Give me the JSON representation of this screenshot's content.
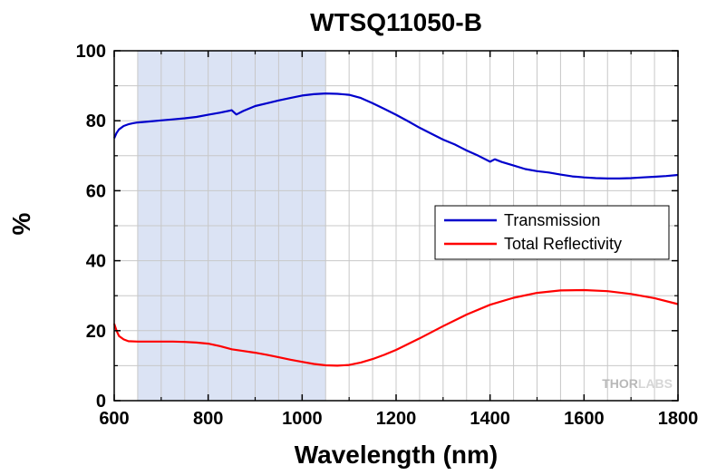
{
  "chart_data": {
    "type": "line",
    "title": "WTSQ11050-B",
    "xlabel": "Wavelength (nm)",
    "ylabel": "%",
    "xlim": [
      600,
      1800
    ],
    "ylim": [
      0,
      100
    ],
    "xticks": [
      600,
      800,
      1000,
      1200,
      1400,
      1600,
      1800
    ],
    "yticks": [
      0,
      20,
      40,
      60,
      80,
      100
    ],
    "grid": true,
    "legend_position": "center-right",
    "highlight_band": {
      "x_start": 650,
      "x_end": 1050,
      "color": "#dbe3f4"
    },
    "series": [
      {
        "name": "Transmission",
        "color": "#0000cc",
        "x": [
          600,
          605,
          610,
          620,
          630,
          640,
          650,
          675,
          700,
          725,
          750,
          775,
          800,
          825,
          850,
          860,
          875,
          900,
          925,
          950,
          975,
          1000,
          1025,
          1050,
          1075,
          1100,
          1125,
          1150,
          1175,
          1200,
          1225,
          1250,
          1275,
          1300,
          1325,
          1350,
          1375,
          1400,
          1410,
          1425,
          1450,
          1475,
          1500,
          1525,
          1550,
          1575,
          1600,
          1625,
          1650,
          1675,
          1700,
          1725,
          1750,
          1775,
          1800
        ],
        "y": [
          75,
          76.5,
          77.5,
          78.5,
          79,
          79.3,
          79.5,
          79.8,
          80.1,
          80.4,
          80.7,
          81.1,
          81.7,
          82.3,
          83,
          81.8,
          82.8,
          84.2,
          85,
          85.8,
          86.5,
          87.2,
          87.6,
          87.8,
          87.7,
          87.4,
          86.5,
          85,
          83.4,
          81.7,
          79.9,
          78,
          76.3,
          74.6,
          73.2,
          71.5,
          70,
          68.3,
          69,
          68.2,
          67.2,
          66.2,
          65.6,
          65.2,
          64.6,
          64.1,
          63.8,
          63.6,
          63.5,
          63.5,
          63.6,
          63.8,
          64,
          64.2,
          64.5
        ]
      },
      {
        "name": "Total Reflectivity",
        "color": "#ff0000",
        "x": [
          600,
          605,
          610,
          620,
          630,
          650,
          675,
          700,
          725,
          750,
          775,
          800,
          825,
          850,
          875,
          900,
          925,
          950,
          975,
          1000,
          1025,
          1050,
          1075,
          1100,
          1125,
          1150,
          1175,
          1200,
          1250,
          1300,
          1350,
          1400,
          1450,
          1500,
          1550,
          1600,
          1650,
          1700,
          1750,
          1800
        ],
        "y": [
          22,
          20,
          18.5,
          17.5,
          17,
          16.9,
          16.9,
          16.9,
          16.9,
          16.8,
          16.6,
          16.3,
          15.6,
          14.7,
          14.2,
          13.7,
          13.1,
          12.4,
          11.7,
          11.1,
          10.5,
          10.1,
          10,
          10.2,
          10.9,
          11.9,
          13.1,
          14.5,
          17.8,
          21.3,
          24.6,
          27.4,
          29.4,
          30.8,
          31.5,
          31.6,
          31.3,
          30.5,
          29.3,
          27.6
        ]
      }
    ]
  },
  "watermark": {
    "part1": "THOR",
    "part2": "LABS"
  }
}
